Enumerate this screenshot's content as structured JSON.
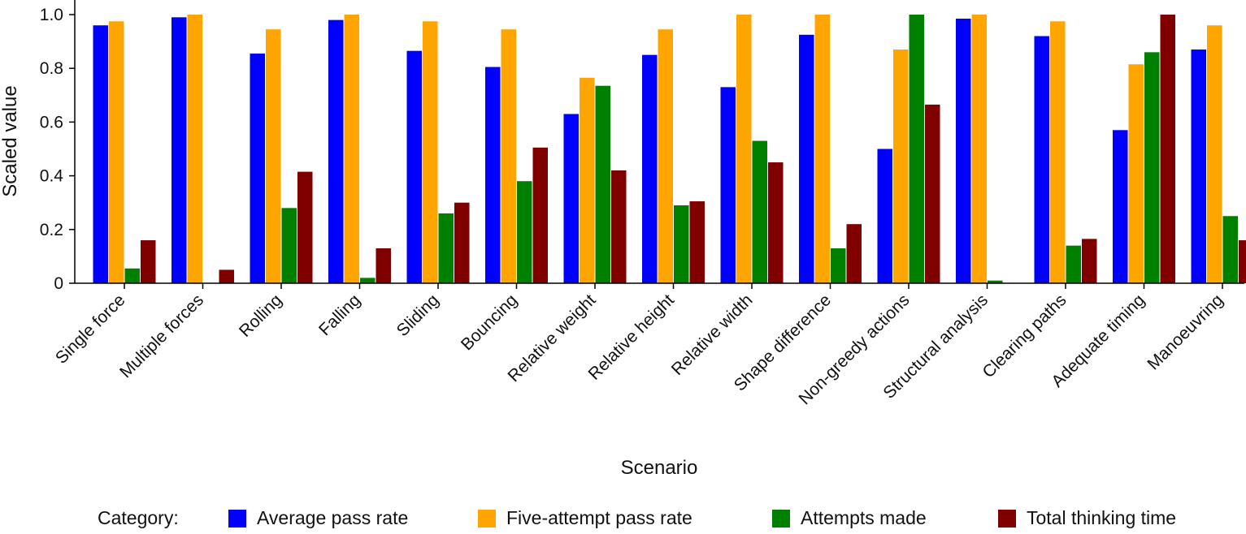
{
  "chart_data": {
    "type": "bar",
    "title": "",
    "xlabel": "Scenario",
    "ylabel": "Scaled value",
    "ylim": [
      0,
      1.0
    ],
    "yticks": [
      0,
      0.2,
      0.4,
      0.6,
      0.8,
      1.0
    ],
    "ytick_labels": [
      "0",
      "0.2",
      "0.4",
      "0.6",
      "0.8",
      "1.0"
    ],
    "grid": false,
    "legend_position": "bottom",
    "legend_title": "Category:",
    "categories": [
      "Single force",
      "Multiple forces",
      "Rolling",
      "Falling",
      "Sliding",
      "Bouncing",
      "Relative weight",
      "Relative height",
      "Relative width",
      "Shape difference",
      "Non-greedy actions",
      "Structural analysis",
      "Clearing paths",
      "Adequate timing",
      "Manoeuvring"
    ],
    "series": [
      {
        "name": "Average pass rate",
        "color": "#0000ff",
        "values": [
          0.96,
          0.99,
          0.855,
          0.98,
          0.865,
          0.805,
          0.63,
          0.85,
          0.73,
          0.925,
          0.5,
          0.985,
          0.92,
          0.57,
          0.87
        ]
      },
      {
        "name": "Five-attempt pass rate",
        "color": "#ffa500",
        "values": [
          0.975,
          1.0,
          0.945,
          1.0,
          0.975,
          0.945,
          0.765,
          0.945,
          1.0,
          1.0,
          0.87,
          1.0,
          0.975,
          0.815,
          0.96
        ]
      },
      {
        "name": "Attempts made",
        "color": "#008000",
        "values": [
          0.055,
          0.0,
          0.28,
          0.02,
          0.26,
          0.38,
          0.735,
          0.29,
          0.53,
          0.13,
          1.0,
          0.01,
          0.14,
          0.86,
          0.25
        ]
      },
      {
        "name": "Total thinking time",
        "color": "#800000",
        "values": [
          0.16,
          0.05,
          0.415,
          0.13,
          0.3,
          0.505,
          0.42,
          0.305,
          0.45,
          0.22,
          0.665,
          0.0,
          0.165,
          1.0,
          0.16
        ]
      }
    ]
  }
}
